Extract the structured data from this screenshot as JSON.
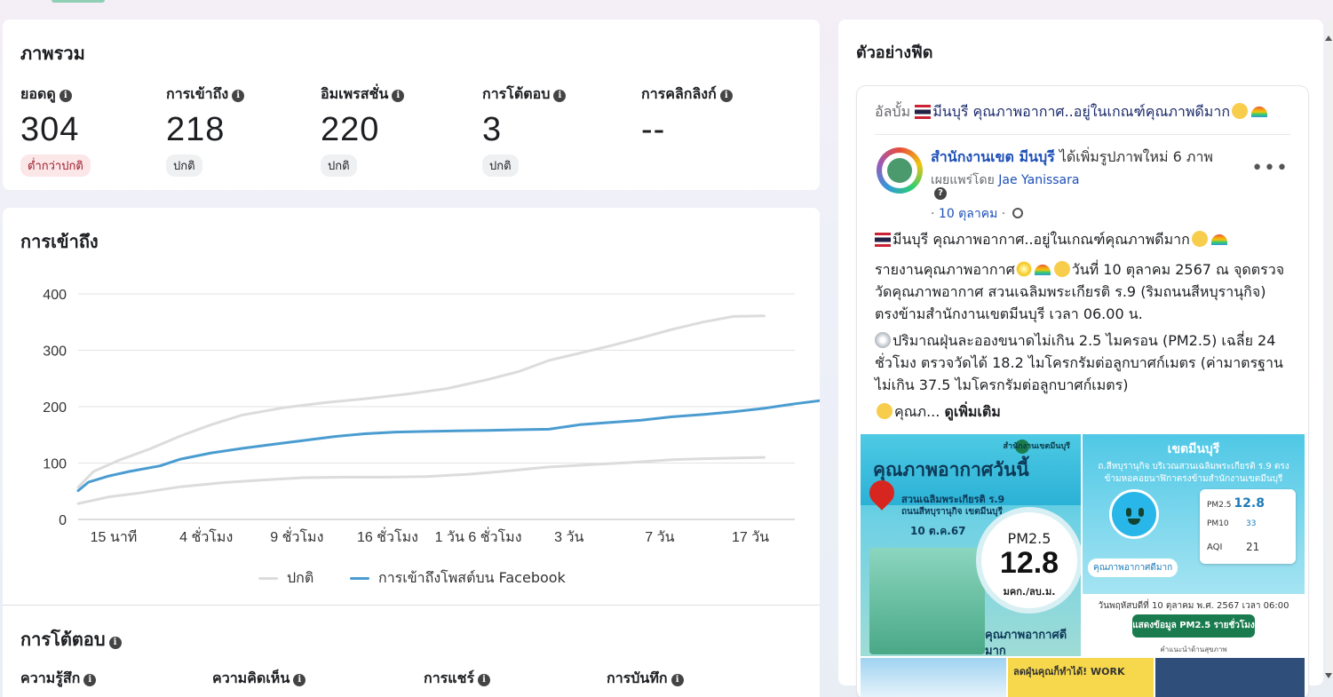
{
  "overview": {
    "title": "ภาพรวม",
    "metrics": [
      {
        "label": "ยอดดู",
        "value": "304",
        "badge": "ต่ำกว่าปกติ"
      },
      {
        "label": "การเข้าถึง",
        "value": "218",
        "badge": "ปกติ"
      },
      {
        "label": "อิมเพรสชั่น",
        "value": "220",
        "badge": "ปกติ"
      },
      {
        "label": "การโต้ตอบ",
        "value": "3",
        "badge": "ปกติ"
      },
      {
        "label": "การคลิกลิงก์",
        "value": "--",
        "badge": ""
      }
    ]
  },
  "reach": {
    "title": "การเข้าถึง",
    "legend_normal": "ปกติ",
    "legend_facebook": "การเข้าถึงโพสต์บน Facebook"
  },
  "interactions": {
    "title": "การโต้ตอบ",
    "labels": [
      "ความรู้สึก",
      "ความคิดเห็น",
      "การแชร์",
      "การบันทึก"
    ]
  },
  "chart_data": {
    "type": "line",
    "x_labels": [
      "15 นาที",
      "4 ชั่วโมง",
      "9 ชั่วโมง",
      "16 ชั่วโมง",
      "1 วัน 6 ชั่วโมง",
      "3 วัน",
      "7 วัน",
      "17 วัน"
    ],
    "ylim": [
      0,
      400
    ],
    "y_ticks": [
      "0",
      "100",
      "200",
      "300",
      "400"
    ],
    "grid": true,
    "legend_position": "bottom",
    "series": [
      {
        "name": "การเข้าถึงโพสต์บน Facebook",
        "color": "#4a9cd0",
        "x": [
          0,
          0.1,
          0.3,
          0.5,
          0.8,
          1.0,
          1.3,
          1.6,
          1.9,
          2.2,
          2.5,
          2.8,
          3.1,
          3.4,
          3.7,
          4.0,
          4.3,
          4.6,
          4.9,
          5.2,
          5.5,
          5.8,
          6.1,
          6.4,
          6.7,
          7.0,
          7.3,
          7.5
        ],
        "values": [
          51,
          66,
          77,
          85,
          95,
          107,
          118,
          126,
          133,
          140,
          147,
          152,
          155,
          156,
          157,
          158,
          159,
          160,
          168,
          172,
          176,
          182,
          186,
          191,
          197,
          205,
          212,
          218
        ]
      },
      {
        "name": "ปกติ upper",
        "color": "#dcdcdc",
        "x": [
          0,
          0.15,
          0.4,
          0.7,
          1.0,
          1.3,
          1.6,
          2.0,
          2.4,
          2.8,
          3.2,
          3.6,
          4.0,
          4.3,
          4.6,
          4.9,
          5.2,
          5.5,
          5.8,
          6.1,
          6.4,
          6.7
        ],
        "values": [
          57,
          85,
          105,
          125,
          148,
          168,
          185,
          198,
          207,
          214,
          222,
          232,
          248,
          262,
          282,
          295,
          308,
          322,
          337,
          350,
          360,
          361
        ]
      },
      {
        "name": "ปกติ lower",
        "color": "#dcdcdc",
        "x": [
          0,
          0.3,
          0.6,
          1.0,
          1.4,
          1.8,
          2.2,
          2.6,
          3.0,
          3.4,
          3.8,
          4.2,
          4.6,
          5.0,
          5.4,
          5.8,
          6.2,
          6.7
        ],
        "values": [
          28,
          40,
          47,
          58,
          65,
          70,
          74,
          75,
          75,
          76,
          80,
          86,
          93,
          97,
          101,
          106,
          108,
          110
        ]
      }
    ]
  },
  "feed": {
    "title": "ตัวอย่างฟีด",
    "album_prefix": "อัลบั้ม",
    "album_title": "มีนบุรี คุณภาพอากาศ..อยู่ในเกณฑ์คุณภาพดีมาก",
    "page_name": "สำนักงานเขต มีนบุรี",
    "action": "ได้เพิ่มรูปภาพใหม่ 6 ภาพ",
    "shared_by_prefix": "เผยแพร่โดย",
    "shared_by": "Jae Yanissara",
    "date": "10 ตุลาคม",
    "line1": "มีนบุรี คุณภาพอากาศ..อยู่ในเกณฑ์คุณภาพดีมาก",
    "line2_a": "รายงานคุณภาพอากาศ",
    "line2_b": "วันที่ 10 ตุลาคม 2567 ณ จุดตรวจวัดคุณภาพอากาศ สวนเฉลิมพระเกียรติ ร.9 (ริมถนนสีหบุรานุกิจ) ตรงข้ามสำนักงานเขตมีนบุรี เวลา 06.00 น.",
    "line3": "ปริมาณฝุ่นละอองขนาดไม่เกิน 2.5 ไมครอน (PM2.5) เฉลี่ย 24 ชั่วโมง ตรวจวัดได้ 18.2 ไมโครกรัมต่อลูกบาศก์เมตร (ค่ามาตรฐานไม่เกิน 37.5 ไมโครกรัมต่อลูกบาศก์เมตร)",
    "line4": "คุณภ...",
    "see_more": "ดูเพิ่มเติม",
    "img1": {
      "org": "สำนักงานเขตมีนบุรี",
      "title": "คุณภาพอากาศวันนี้",
      "loc1": "สวนเฉลิมพระเกียรติ ร.9",
      "loc2": "ถนนสีหบุรานุกิจ เขตมีนบุรี",
      "date": "10 ต.ค.67",
      "pm_label": "PM2.5",
      "pm_value": "12.8",
      "unit": "มคก./ลบ.ม.",
      "quality": "คุณภาพอากาศดีมาก"
    },
    "img2": {
      "title": "เขตมีนบุรี",
      "sub": "ถ.สีหบุรานุกิจ บริเวณสวนเฉลิมพระเกียรติ ร.9 ตรงข้ามหอคอยนาฬิกาตรงข้ามสำนักงานเขตมีนบุรี",
      "good": "คุณภาพอากาศดีมาก",
      "pm25_label": "PM2.5",
      "pm25_value": "12.8",
      "pm10_label": "PM10",
      "pm10_value": "33",
      "aqi_label": "AQI",
      "aqi_value": "21",
      "when": "วันพฤหัสบดีที่ 10 ตุลาคม พ.ศ. 2567 เวลา 06:00",
      "button": "แสดงข้อมูล PM2.5 รายชั่วโมง",
      "hint": "คำแนะนำด้านสุขภาพ"
    },
    "img3_text": "ลดฝุ่นคุณก็ทำได้! WORK"
  },
  "colors": {
    "facebook_series": "#4a9cd0",
    "normal_series": "#dcdcdc",
    "link": "#1d4fb8",
    "below_normal_badge": "#fbe6e8"
  }
}
